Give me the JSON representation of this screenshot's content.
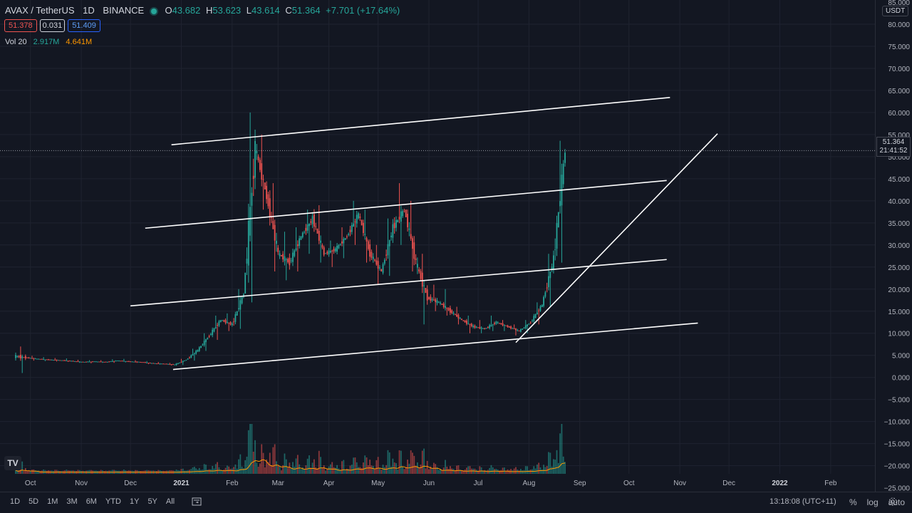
{
  "header": {
    "symbol": "AVAX / TetherUS",
    "interval": "1D",
    "exchange": "BINANCE",
    "o_label": "O",
    "o_value": "43.682",
    "h_label": "H",
    "h_value": "53.623",
    "l_label": "L",
    "l_value": "43.614",
    "c_label": "C",
    "c_value": "51.364",
    "change": "+7.701 (+17.64%)"
  },
  "quote": {
    "bid": "51.378",
    "spread": "0.031",
    "ask": "51.409"
  },
  "volume_indicator": {
    "label": "Vol 20",
    "value1": "2.917M",
    "value2": "4.641M"
  },
  "price_scale": {
    "currency": "USDT",
    "last_price": "51.364",
    "countdown": "21:41:52",
    "ticks": [
      "85.000",
      "80.000",
      "75.000",
      "70.000",
      "65.000",
      "60.000",
      "55.000",
      "50.000",
      "45.000",
      "40.000",
      "35.000",
      "30.000",
      "25.000",
      "20.000",
      "15.000",
      "10.000",
      "5.000",
      "0.000",
      "−5.000",
      "−10.000",
      "−15.000",
      "−20.000",
      "−25.000"
    ]
  },
  "time_scale": {
    "labels": [
      "Oct",
      "Nov",
      "Dec",
      "2021",
      "Feb",
      "Mar",
      "Apr",
      "May",
      "Jun",
      "Jul",
      "Aug",
      "Sep",
      "Oct",
      "Nov",
      "Dec",
      "2022",
      "Feb"
    ]
  },
  "bottom_bar": {
    "ranges": [
      "1D",
      "5D",
      "1M",
      "3M",
      "6M",
      "YTD",
      "1Y",
      "5Y",
      "All"
    ],
    "goto_icon": "calendar-goto-icon",
    "clock": "13:18:08 (UTC+11)",
    "percent": "%",
    "log": "log",
    "auto": "auto",
    "settings_icon": "gear-icon"
  },
  "logo_text": "TV",
  "colors": {
    "up": "#26a69a",
    "down": "#ef5350",
    "background": "#131722",
    "grid": "#1f2330",
    "trendline": "#ffffff",
    "volume_ma": "#ff9800"
  },
  "chart_data": {
    "type": "candlestick",
    "symbol": "AVAX / TetherUS",
    "interval": "1D",
    "y_range": [
      -27,
      86
    ],
    "x_range": [
      "2020-09-22",
      "2022-02-28"
    ],
    "weekly_ohlc": [
      [
        "2020-09-22",
        4.8,
        7.0,
        1.0,
        4.5
      ],
      [
        "2020-09-29",
        4.5,
        4.9,
        3.8,
        4.2
      ],
      [
        "2020-10-06",
        4.2,
        4.6,
        3.7,
        4.0
      ],
      [
        "2020-10-13",
        4.0,
        4.4,
        3.6,
        3.9
      ],
      [
        "2020-10-20",
        3.9,
        4.3,
        3.5,
        3.7
      ],
      [
        "2020-10-27",
        3.7,
        4.0,
        3.3,
        3.5
      ],
      [
        "2020-11-03",
        3.5,
        3.9,
        3.2,
        3.6
      ],
      [
        "2020-11-10",
        3.6,
        3.9,
        3.3,
        3.5
      ],
      [
        "2020-11-17",
        3.5,
        4.1,
        3.3,
        3.8
      ],
      [
        "2020-11-24",
        3.8,
        4.2,
        3.4,
        3.6
      ],
      [
        "2020-12-01",
        3.6,
        3.9,
        3.3,
        3.5
      ],
      [
        "2020-12-08",
        3.5,
        3.7,
        3.0,
        3.2
      ],
      [
        "2020-12-15",
        3.2,
        3.5,
        2.9,
        3.1
      ],
      [
        "2020-12-22",
        3.1,
        3.3,
        2.7,
        2.9
      ],
      [
        "2020-12-29",
        2.9,
        4.2,
        2.8,
        4.0
      ],
      [
        "2021-01-05",
        4.0,
        6.5,
        3.8,
        6.2
      ],
      [
        "2021-01-12",
        6.2,
        10.0,
        6.0,
        9.5
      ],
      [
        "2021-01-19",
        9.5,
        14.0,
        8.5,
        13.0
      ],
      [
        "2021-01-26",
        13.0,
        14.5,
        10.5,
        12.0
      ],
      [
        "2021-02-02",
        12.0,
        20.0,
        11.0,
        19.0
      ],
      [
        "2021-02-09",
        19.0,
        60.0,
        17.0,
        52.0
      ],
      [
        "2021-02-16",
        52.0,
        55.0,
        38.0,
        41.0
      ],
      [
        "2021-02-23",
        41.0,
        44.0,
        24.0,
        28.0
      ],
      [
        "2021-03-02",
        28.0,
        33.0,
        22.0,
        26.0
      ],
      [
        "2021-03-09",
        26.0,
        34.0,
        24.0,
        32.0
      ],
      [
        "2021-03-16",
        32.0,
        38.0,
        28.0,
        36.0
      ],
      [
        "2021-03-23",
        36.0,
        39.0,
        26.0,
        28.0
      ],
      [
        "2021-03-30",
        28.0,
        31.0,
        25.0,
        29.0
      ],
      [
        "2021-04-06",
        29.0,
        34.0,
        27.0,
        32.0
      ],
      [
        "2021-04-13",
        32.0,
        40.0,
        30.0,
        37.0
      ],
      [
        "2021-04-20",
        37.0,
        38.0,
        26.0,
        28.0
      ],
      [
        "2021-04-27",
        28.0,
        30.0,
        21.0,
        24.0
      ],
      [
        "2021-05-04",
        24.0,
        36.0,
        23.0,
        34.0
      ],
      [
        "2021-05-11",
        34.0,
        44.0,
        30.0,
        38.0
      ],
      [
        "2021-05-18",
        38.0,
        40.0,
        24.0,
        26.0
      ],
      [
        "2021-05-25",
        26.0,
        28.0,
        12.0,
        18.0
      ],
      [
        "2021-06-01",
        18.0,
        21.0,
        15.0,
        17.0
      ],
      [
        "2021-06-08",
        17.0,
        20.0,
        14.0,
        15.0
      ],
      [
        "2021-06-15",
        15.0,
        16.0,
        12.0,
        13.0
      ],
      [
        "2021-06-22",
        13.0,
        14.0,
        10.0,
        11.5
      ],
      [
        "2021-06-29",
        11.5,
        13.0,
        10.0,
        11.0
      ],
      [
        "2021-07-06",
        11.0,
        14.0,
        10.5,
        12.5
      ],
      [
        "2021-07-13",
        12.5,
        13.0,
        10.5,
        11.5
      ],
      [
        "2021-07-20",
        11.5,
        12.0,
        9.5,
        10.5
      ],
      [
        "2021-07-27",
        10.5,
        13.0,
        10.0,
        12.5
      ],
      [
        "2021-08-03",
        12.5,
        17.0,
        12.0,
        16.5
      ],
      [
        "2021-08-10",
        16.5,
        28.0,
        16.0,
        27.0
      ],
      [
        "2021-08-17",
        27.0,
        53.6,
        26.0,
        51.4
      ]
    ],
    "trendlines": [
      {
        "from": [
          "2020-12-26",
          52.7
        ],
        "to": [
          "2021-10-26",
          63.4
        ]
      },
      {
        "from": [
          "2020-12-10",
          33.8
        ],
        "to": [
          "2021-10-24",
          44.6
        ]
      },
      {
        "from": [
          "2020-12-01",
          16.2
        ],
        "to": [
          "2021-10-24",
          26.7
        ]
      },
      {
        "from": [
          "2020-12-27",
          1.8
        ],
        "to": [
          "2021-11-12",
          12.3
        ]
      },
      {
        "from": [
          "2021-07-24",
          7.9
        ],
        "to": [
          "2021-11-24",
          55.2
        ]
      }
    ]
  }
}
